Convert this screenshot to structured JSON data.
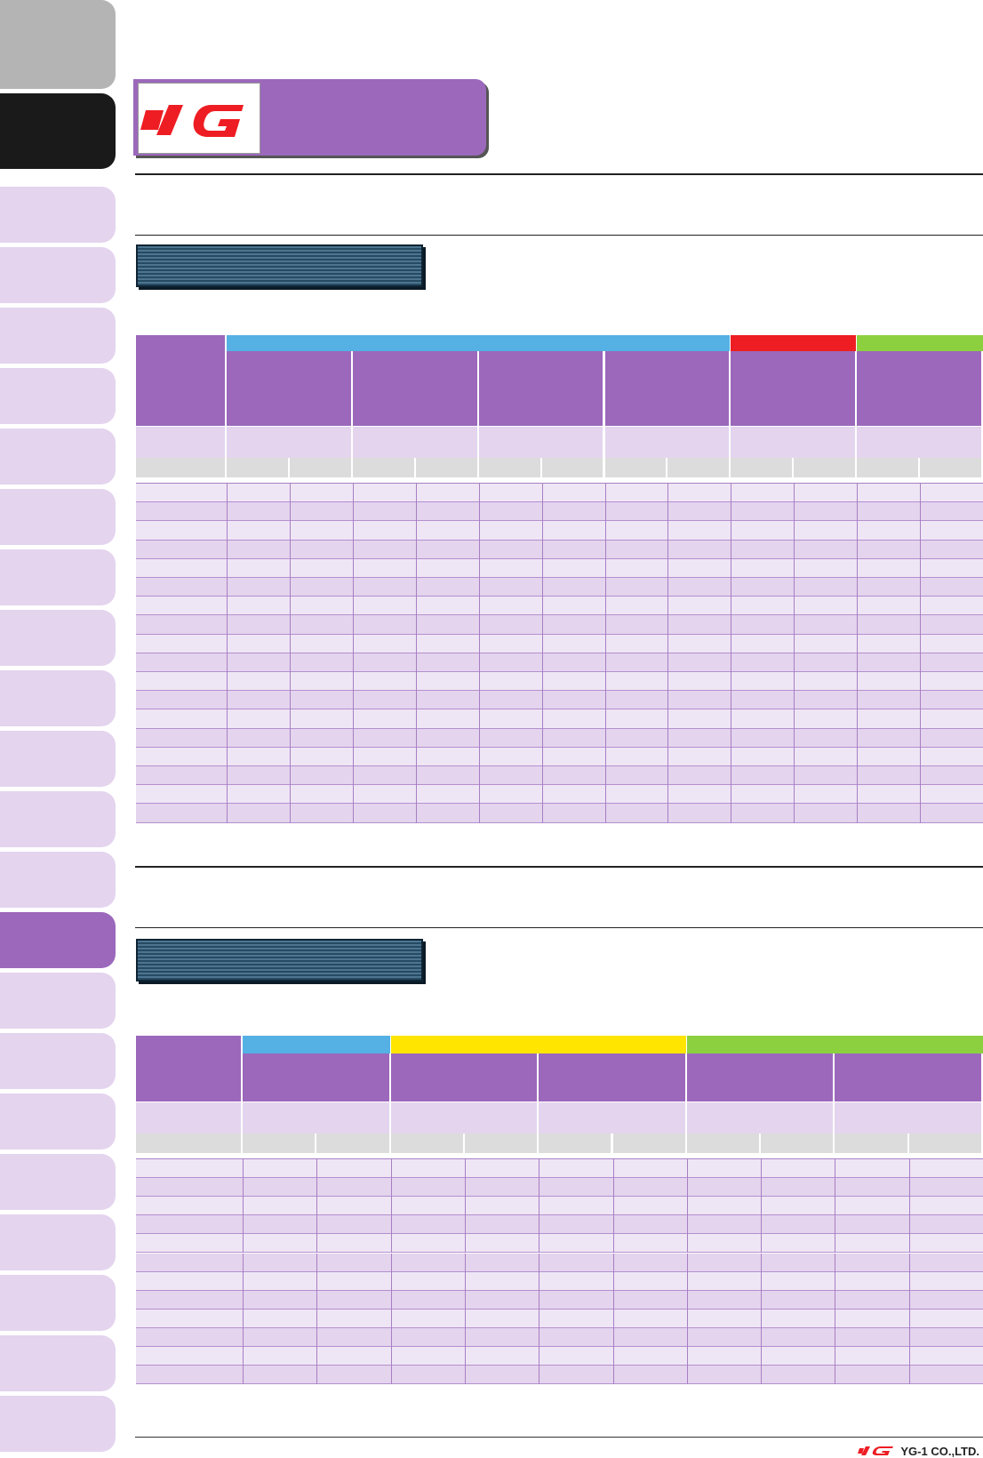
{
  "brand": {
    "logo_text": "YG",
    "footer_company": "YG-1 CO.,LTD.",
    "colors": {
      "purple": "#9b68bb",
      "light_purple": "#e4d4ee",
      "pale_purple": "#efe6f5",
      "dark_tab": "#1a1a1a",
      "grey_tab": "#b4b4b4",
      "red": "#ee1d23",
      "blue": "#55b0e4",
      "green": "#8cd040",
      "yellow": "#ffe500",
      "banner": "#2c5068"
    }
  },
  "sidebar": {
    "tab_count": 24,
    "active_dark_index": 1,
    "active_purple_index": 15
  },
  "table1": {
    "group_colors": [
      "#55b0e4",
      "#ee1d23",
      "#8cd040"
    ],
    "group_spans": [
      4,
      1,
      1
    ],
    "product_columns": 6,
    "sub_columns_per_product": 2,
    "data_rows": 18
  },
  "table2": {
    "group_colors": [
      "#55b0e4",
      "#ffe500",
      "#8cd040"
    ],
    "group_spans": [
      1,
      2,
      2
    ],
    "product_columns": 5,
    "sub_columns_per_product": 2,
    "data_rows": 12
  }
}
